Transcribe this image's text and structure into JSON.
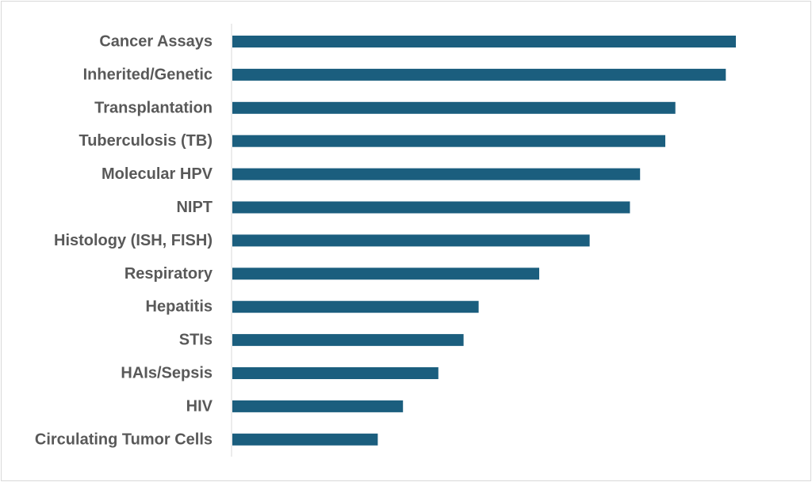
{
  "chart_data": {
    "type": "bar",
    "orientation": "horizontal",
    "title": "",
    "xlabel": "",
    "ylabel": "",
    "categories": [
      "Cancer Assays",
      "Inherited/Genetic",
      "Transplantation",
      "Tuberculosis (TB)",
      "Molecular HPV",
      "NIPT",
      "Histology (ISH, FISH)",
      "Respiratory ",
      "Hepatitis",
      "STIs",
      "HAIs/Sepsis",
      "HIV",
      "Circulating Tumor Cells"
    ],
    "values": [
      100,
      98,
      88,
      86,
      81,
      79,
      71,
      61,
      49,
      46,
      41,
      34,
      29
    ],
    "xlim": [
      0,
      100
    ],
    "grid": false,
    "legend": "none",
    "bar_color": "#1b5e7e",
    "label_color": "#595959",
    "axis_color": "#d9d9d9"
  }
}
